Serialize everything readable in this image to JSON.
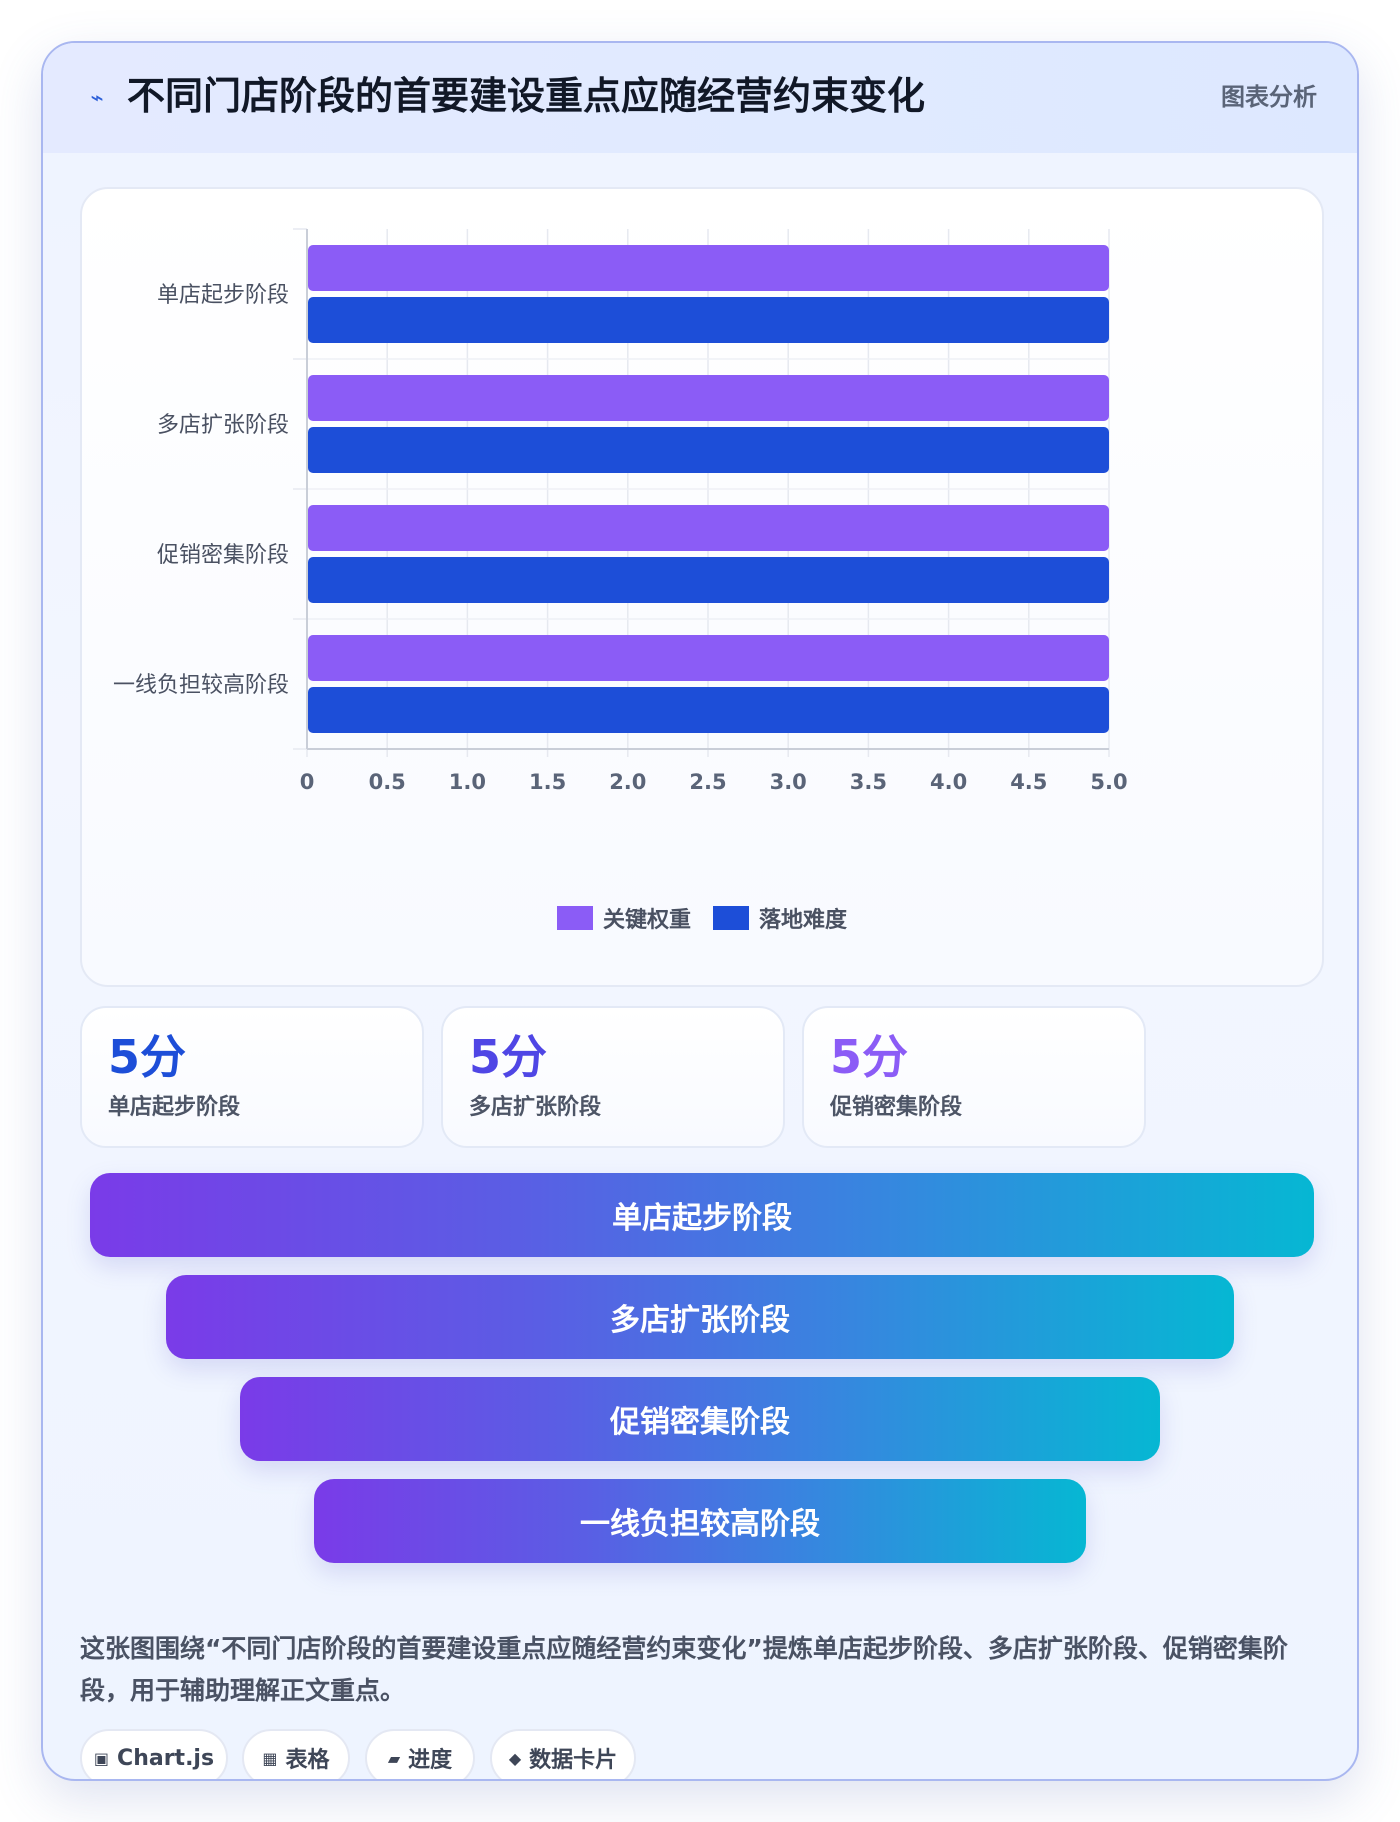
{
  "header": {
    "title": "不同门店阶段的首要建设重点应随经营约束变化",
    "tag": "图表分析",
    "icon": "lightning-icon"
  },
  "chart_data": {
    "type": "bar",
    "orientation": "horizontal",
    "categories": [
      "单店起步阶段",
      "多店扩张阶段",
      "促销密集阶段",
      "一线负担较高阶段"
    ],
    "series": [
      {
        "name": "关键权重",
        "color": "#8b5cf6",
        "values": [
          5,
          5,
          5,
          5
        ]
      },
      {
        "name": "落地难度",
        "color": "#1d4ed8",
        "values": [
          5,
          5,
          5,
          5
        ]
      }
    ],
    "xlim": [
      0,
      5
    ],
    "x_ticks": [
      "0",
      "0.5",
      "1.0",
      "1.5",
      "2.0",
      "2.5",
      "3.0",
      "3.5",
      "4.0",
      "4.5",
      "5.0"
    ],
    "grid": true,
    "legend": "bottom-center"
  },
  "stats": [
    {
      "value": "5分",
      "label": "单店起步阶段",
      "color": "#1d4ed8"
    },
    {
      "value": "5分",
      "label": "多店扩张阶段",
      "color": "#4f46e5"
    },
    {
      "value": "5分",
      "label": "促销密集阶段",
      "color": "#8b5cf6"
    }
  ],
  "funnel": [
    {
      "label": "单店起步阶段"
    },
    {
      "label": "多店扩张阶段"
    },
    {
      "label": "促销密集阶段"
    },
    {
      "label": "一线负担较高阶段"
    }
  ],
  "description": "这张图围绕“不同门店阶段的首要建设重点应随经营约束变化”提炼单店起步阶段、多店扩张阶段、促销密集阶段，用于辅助理解正文重点。",
  "chips": [
    {
      "icon": "▣",
      "label": "Chart.js"
    },
    {
      "icon": "▦",
      "label": "表格"
    },
    {
      "icon": "▰",
      "label": "进度"
    },
    {
      "icon": "◆",
      "label": "数据卡片"
    }
  ]
}
